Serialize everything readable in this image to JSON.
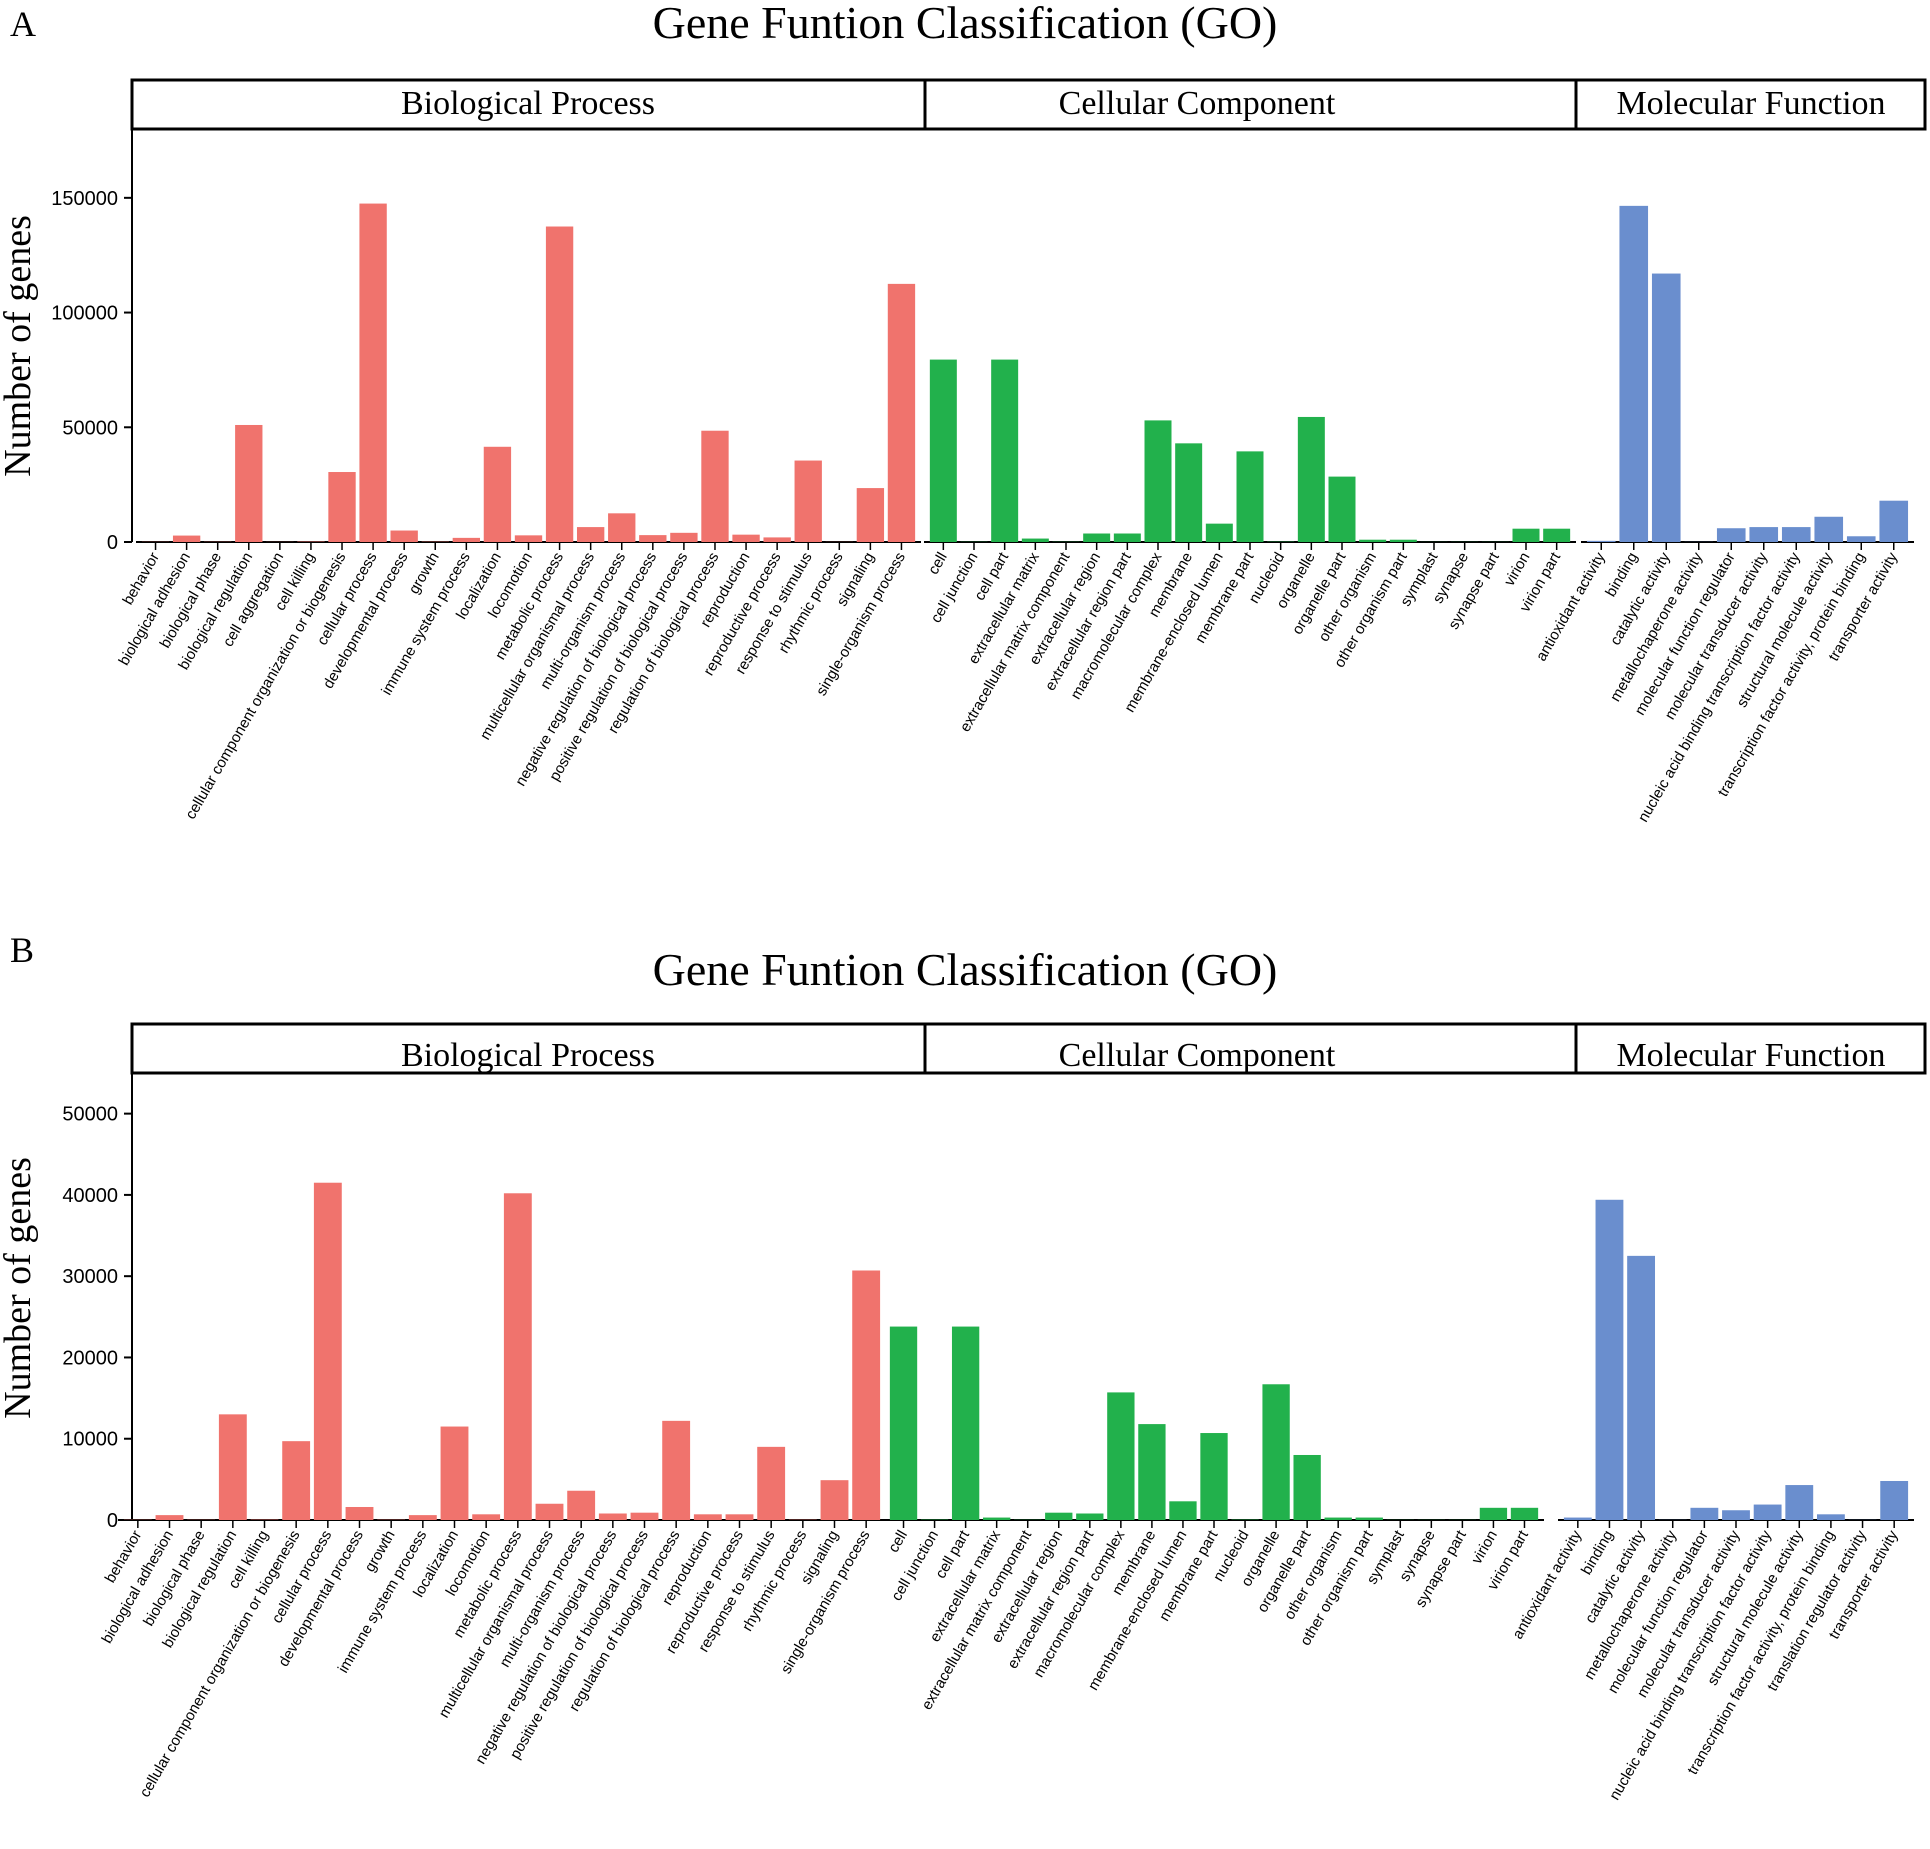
{
  "chart_data": [
    {
      "type": "bar",
      "panel": "A",
      "title": "Gene Funtion Classification (GO)",
      "xlabel": "",
      "ylabel": "Number of genes",
      "ylim": [
        0,
        180000
      ],
      "yticks": [
        0,
        50000,
        100000,
        150000
      ],
      "ytick_labels": [
        "0",
        "50000",
        "100000",
        "150000"
      ],
      "groups": [
        {
          "name": "Biological Process",
          "color": "#F0736D",
          "categories": [
            "behavior",
            "biological adhesion",
            "biological phase",
            "biological regulation",
            "cell aggregation",
            "cell killing",
            "cellular component organization or biogenesis",
            "cellular process",
            "developmental process",
            "growth",
            "immune system process",
            "localization",
            "locomotion",
            "metabolic process",
            "multicellular organismal process",
            "multi-organism process",
            "negative regulation of biological process",
            "positive regulation of biological process",
            "regulation of biological process",
            "reproduction",
            "reproductive process",
            "response to stimulus",
            "rhythmic process",
            "signaling",
            "single-organism process"
          ],
          "values": [
            80,
            2800,
            100,
            51000,
            60,
            200,
            30500,
            147500,
            5000,
            150,
            1800,
            41500,
            2900,
            137500,
            6500,
            12500,
            3000,
            4000,
            48500,
            3200,
            2000,
            35500,
            60,
            23500,
            112500
          ]
        },
        {
          "name": "Cellular Component",
          "color": "#22B14C",
          "categories": [
            "cell",
            "cell junction",
            "cell part",
            "extracellular matrix",
            "extracellular matrix component",
            "extracellular region",
            "extracellular region part",
            "macromolecular complex",
            "membrane",
            "membrane-enclosed lumen",
            "membrane part",
            "nucleoid",
            "organelle",
            "organelle part",
            "other organism",
            "other organism part",
            "symplast",
            "synapse",
            "synapse part",
            "virion",
            "virion part"
          ],
          "values": [
            79500,
            100,
            79500,
            1500,
            100,
            3700,
            3700,
            53000,
            43000,
            8000,
            39500,
            150,
            54500,
            28500,
            1000,
            1000,
            50,
            60,
            60,
            5800,
            5800
          ]
        },
        {
          "name": "Molecular Function",
          "color": "#6A8ECE",
          "categories": [
            "antioxidant activity",
            "binding",
            "catalytic activity",
            "metallochaperone activity",
            "molecular function regulator",
            "molecular transducer activity",
            "nucleic acid binding transcription factor activity",
            "structural molecule activity",
            "transcription factor activity, protein binding",
            "transporter activity"
          ],
          "values": [
            500,
            146500,
            117000,
            60,
            6000,
            6500,
            6500,
            11000,
            2500,
            18000
          ]
        }
      ]
    },
    {
      "type": "bar",
      "panel": "B",
      "title": "Gene Funtion Classification (GO)",
      "xlabel": "",
      "ylabel": "Number of genes",
      "ylim": [
        0,
        55000
      ],
      "yticks": [
        0,
        10000,
        20000,
        30000,
        40000,
        50000
      ],
      "ytick_labels": [
        "0",
        "10000",
        "20000",
        "30000",
        "40000",
        "50000"
      ],
      "groups": [
        {
          "name": "Biological Process",
          "color": "#F0736D",
          "categories": [
            "behavior",
            "biological adhesion",
            "biological phase",
            "biological regulation",
            "cell killing",
            "cellular component organization or biogenesis",
            "cellular process",
            "developmental process",
            "growth",
            "immune system process",
            "localization",
            "locomotion",
            "metabolic process",
            "multicellular organismal process",
            "multi-organism process",
            "negative regulation of biological process",
            "positive regulation of biological process",
            "regulation of biological process",
            "reproduction",
            "reproductive process",
            "response to stimulus",
            "rhythmic process",
            "signaling",
            "single-organism process"
          ],
          "values": [
            30,
            600,
            30,
            13000,
            50,
            9700,
            41500,
            1600,
            40,
            600,
            11500,
            700,
            40200,
            2000,
            3600,
            800,
            900,
            12200,
            700,
            700,
            9000,
            40,
            4900,
            30700
          ]
        },
        {
          "name": "Cellular Component",
          "color": "#22B14C",
          "categories": [
            "cell",
            "cell junction",
            "cell part",
            "extracellular matrix",
            "extracellular matrix component",
            "extracellular region",
            "extracellular region part",
            "macromolecular complex",
            "membrane",
            "membrane-enclosed lumen",
            "membrane part",
            "nucleoid",
            "organelle",
            "organelle part",
            "other organism",
            "other organism part",
            "symplast",
            "synapse",
            "synapse part",
            "virion",
            "virion part"
          ],
          "values": [
            23800,
            50,
            23800,
            300,
            30,
            900,
            800,
            15700,
            11800,
            2300,
            10700,
            50,
            16700,
            8000,
            300,
            300,
            20,
            20,
            20,
            1500,
            1500
          ]
        },
        {
          "name": "Molecular Function",
          "color": "#6A8ECE",
          "categories": [
            "antioxidant activity",
            "binding",
            "catalytic activity",
            "metallochaperone activity",
            "molecular function regulator",
            "molecular transducer activity",
            "nucleic acid binding transcription factor activity",
            "structural molecule activity",
            "transcription factor activity, protein binding",
            "translation regulator activity",
            "transporter activity"
          ],
          "values": [
            300,
            39400,
            32500,
            20,
            1500,
            1200,
            1900,
            4300,
            700,
            20,
            4800
          ]
        }
      ]
    }
  ]
}
